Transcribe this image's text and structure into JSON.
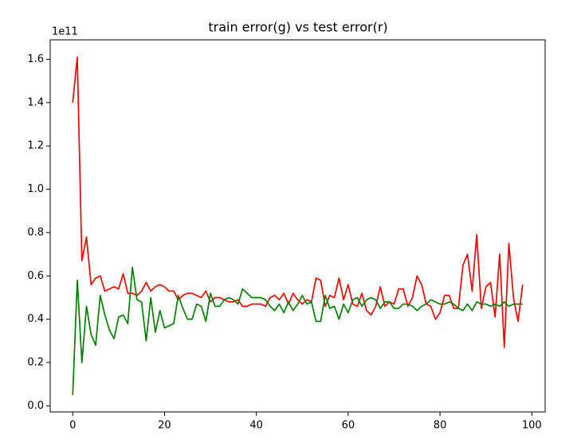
{
  "chart_data": {
    "type": "line",
    "title": "train error(g) vs test error(r)",
    "offset_label": "1e11",
    "x": [
      0,
      1,
      2,
      3,
      4,
      5,
      6,
      7,
      8,
      9,
      10,
      11,
      12,
      13,
      14,
      15,
      16,
      17,
      18,
      19,
      20,
      21,
      22,
      23,
      24,
      25,
      26,
      27,
      28,
      29,
      30,
      31,
      32,
      33,
      34,
      35,
      36,
      37,
      38,
      39,
      40,
      41,
      42,
      43,
      44,
      45,
      46,
      47,
      48,
      49,
      50,
      51,
      52,
      53,
      54,
      55,
      56,
      57,
      58,
      59,
      60,
      61,
      62,
      63,
      64,
      65,
      66,
      67,
      68,
      69,
      70,
      71,
      72,
      73,
      74,
      75,
      76,
      77,
      78,
      79,
      80,
      81,
      82,
      83,
      84,
      85,
      86,
      87,
      88,
      89,
      90,
      91,
      92,
      93,
      94,
      95,
      96,
      97,
      98
    ],
    "series": [
      {
        "color": "#ff0000",
        "values": [
          1.4,
          1.61,
          0.67,
          0.78,
          0.56,
          0.59,
          0.6,
          0.53,
          0.54,
          0.55,
          0.54,
          0.61,
          0.52,
          0.52,
          0.51,
          0.53,
          0.57,
          0.53,
          0.55,
          0.56,
          0.55,
          0.53,
          0.53,
          0.49,
          0.51,
          0.52,
          0.52,
          0.51,
          0.5,
          0.53,
          0.48,
          0.5,
          0.5,
          0.49,
          0.48,
          0.48,
          0.49,
          0.46,
          0.46,
          0.47,
          0.47,
          0.47,
          0.46,
          0.5,
          0.51,
          0.49,
          0.52,
          0.47,
          0.52,
          0.49,
          0.47,
          0.49,
          0.48,
          0.59,
          0.58,
          0.46,
          0.51,
          0.5,
          0.59,
          0.49,
          0.56,
          0.47,
          0.46,
          0.52,
          0.44,
          0.42,
          0.46,
          0.55,
          0.46,
          0.48,
          0.47,
          0.54,
          0.54,
          0.46,
          0.5,
          0.6,
          0.56,
          0.47,
          0.46,
          0.4,
          0.43,
          0.51,
          0.51,
          0.45,
          0.45,
          0.65,
          0.7,
          0.53,
          0.79,
          0.45,
          0.55,
          0.57,
          0.41,
          0.7,
          0.27,
          0.75,
          0.5,
          0.39,
          0.56
        ]
      },
      {
        "color": "#008000",
        "values": [
          0.05,
          0.58,
          0.2,
          0.46,
          0.33,
          0.28,
          0.51,
          0.42,
          0.35,
          0.31,
          0.41,
          0.42,
          0.38,
          0.64,
          0.49,
          0.48,
          0.3,
          0.5,
          0.34,
          0.44,
          0.36,
          0.37,
          0.38,
          0.51,
          0.45,
          0.4,
          0.4,
          0.47,
          0.46,
          0.39,
          0.52,
          0.46,
          0.46,
          0.49,
          0.5,
          0.49,
          0.47,
          0.54,
          0.52,
          0.5,
          0.5,
          0.5,
          0.49,
          0.46,
          0.44,
          0.47,
          0.43,
          0.48,
          0.44,
          0.47,
          0.51,
          0.47,
          0.48,
          0.39,
          0.39,
          0.51,
          0.45,
          0.46,
          0.4,
          0.47,
          0.43,
          0.49,
          0.5,
          0.46,
          0.49,
          0.5,
          0.49,
          0.45,
          0.48,
          0.48,
          0.45,
          0.45,
          0.47,
          0.47,
          0.46,
          0.44,
          0.46,
          0.47,
          0.49,
          0.48,
          0.47,
          0.47,
          0.48,
          0.47,
          0.45,
          0.44,
          0.47,
          0.44,
          0.48,
          0.47,
          0.47,
          0.46,
          0.47,
          0.46,
          0.48,
          0.46,
          0.47,
          0.47,
          0.47
        ]
      }
    ],
    "xlim": [
      -4.9,
      102.9
    ],
    "xticks": [
      0,
      20,
      40,
      60,
      80,
      100
    ],
    "ylim": [
      -0.028,
      1.69
    ],
    "yticks": [
      {
        "value": 0,
        "label": "0.0"
      },
      0.2,
      0.4,
      0.6,
      0.8,
      {
        "value": 1,
        "label": "1.0"
      },
      1.2,
      1.4,
      1.6
    ]
  }
}
